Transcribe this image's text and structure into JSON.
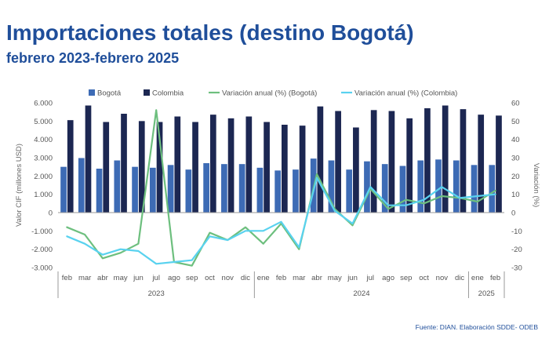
{
  "title": "Importaciones totales (destino Bogotá)",
  "subtitle": "febrero 2023-febrero 2025",
  "source": "Fuente: DIAN. Elaboración SDDE- ODEB",
  "chart_data": {
    "type": "bar",
    "categories": [
      "feb",
      "mar",
      "abr",
      "may",
      "jun",
      "jul",
      "ago",
      "sep",
      "oct",
      "nov",
      "dic",
      "ene",
      "feb",
      "mar",
      "abr",
      "may",
      "jun",
      "jul",
      "ago",
      "sep",
      "oct",
      "nov",
      "dic",
      "ene",
      "feb"
    ],
    "year_groups": [
      {
        "label": "2023",
        "count": 11
      },
      {
        "label": "2024",
        "count": 12
      },
      {
        "label": "2025",
        "count": 2
      }
    ],
    "ylabel": "Valor CIF (millones USD)",
    "y2label": "Variación (%)",
    "ylim": [
      -3000,
      6000
    ],
    "y2lim": [
      -30,
      60
    ],
    "yticks": [
      "6.000",
      "5.000",
      "4.000",
      "3.000",
      "2.000",
      "1.000",
      "0",
      "-1.000",
      "-2.000",
      "-3.000"
    ],
    "y2ticks": [
      "60",
      "50",
      "40",
      "30",
      "20",
      "10",
      "0",
      "-10",
      "-20",
      "-30"
    ],
    "legend_position": "top",
    "series": [
      {
        "name": "Bogotá",
        "type": "bar",
        "color": "#3d6bb5",
        "values": [
          2500,
          2980,
          2400,
          2850,
          2500,
          2450,
          2600,
          2350,
          2700,
          2650,
          2650,
          2450,
          2300,
          2350,
          2950,
          2850,
          2350,
          2800,
          2650,
          2550,
          2850,
          2900,
          2850,
          2600,
          2600
        ]
      },
      {
        "name": "Colombia",
        "type": "bar",
        "color": "#1c2752",
        "values": [
          5050,
          5850,
          4950,
          5400,
          5000,
          4950,
          5250,
          4950,
          5350,
          5150,
          5250,
          4950,
          4800,
          4750,
          5800,
          5550,
          4650,
          5600,
          5550,
          5150,
          5700,
          5850,
          5650,
          5350,
          5300
        ]
      },
      {
        "name": "Variación anual (%) (Bogotá)",
        "type": "line",
        "axis": "right",
        "color": "#6dbf7e",
        "values": [
          -8,
          -12,
          -25,
          -22,
          -17,
          56,
          -27,
          -29,
          -11,
          -15,
          -8,
          -17,
          -6,
          -20,
          21,
          2,
          -7,
          13,
          2,
          7,
          5,
          9,
          8,
          6,
          12
        ]
      },
      {
        "name": "Variación anual (%) (Colombia)",
        "type": "line",
        "axis": "right",
        "color": "#59d2ef",
        "values": [
          -13,
          -17,
          -23,
          -20,
          -21,
          -28,
          -27,
          -26,
          -13,
          -15,
          -10,
          -10,
          -5,
          -19,
          19,
          1,
          -6,
          14,
          4,
          4,
          7,
          14,
          8,
          9,
          10
        ]
      }
    ]
  }
}
